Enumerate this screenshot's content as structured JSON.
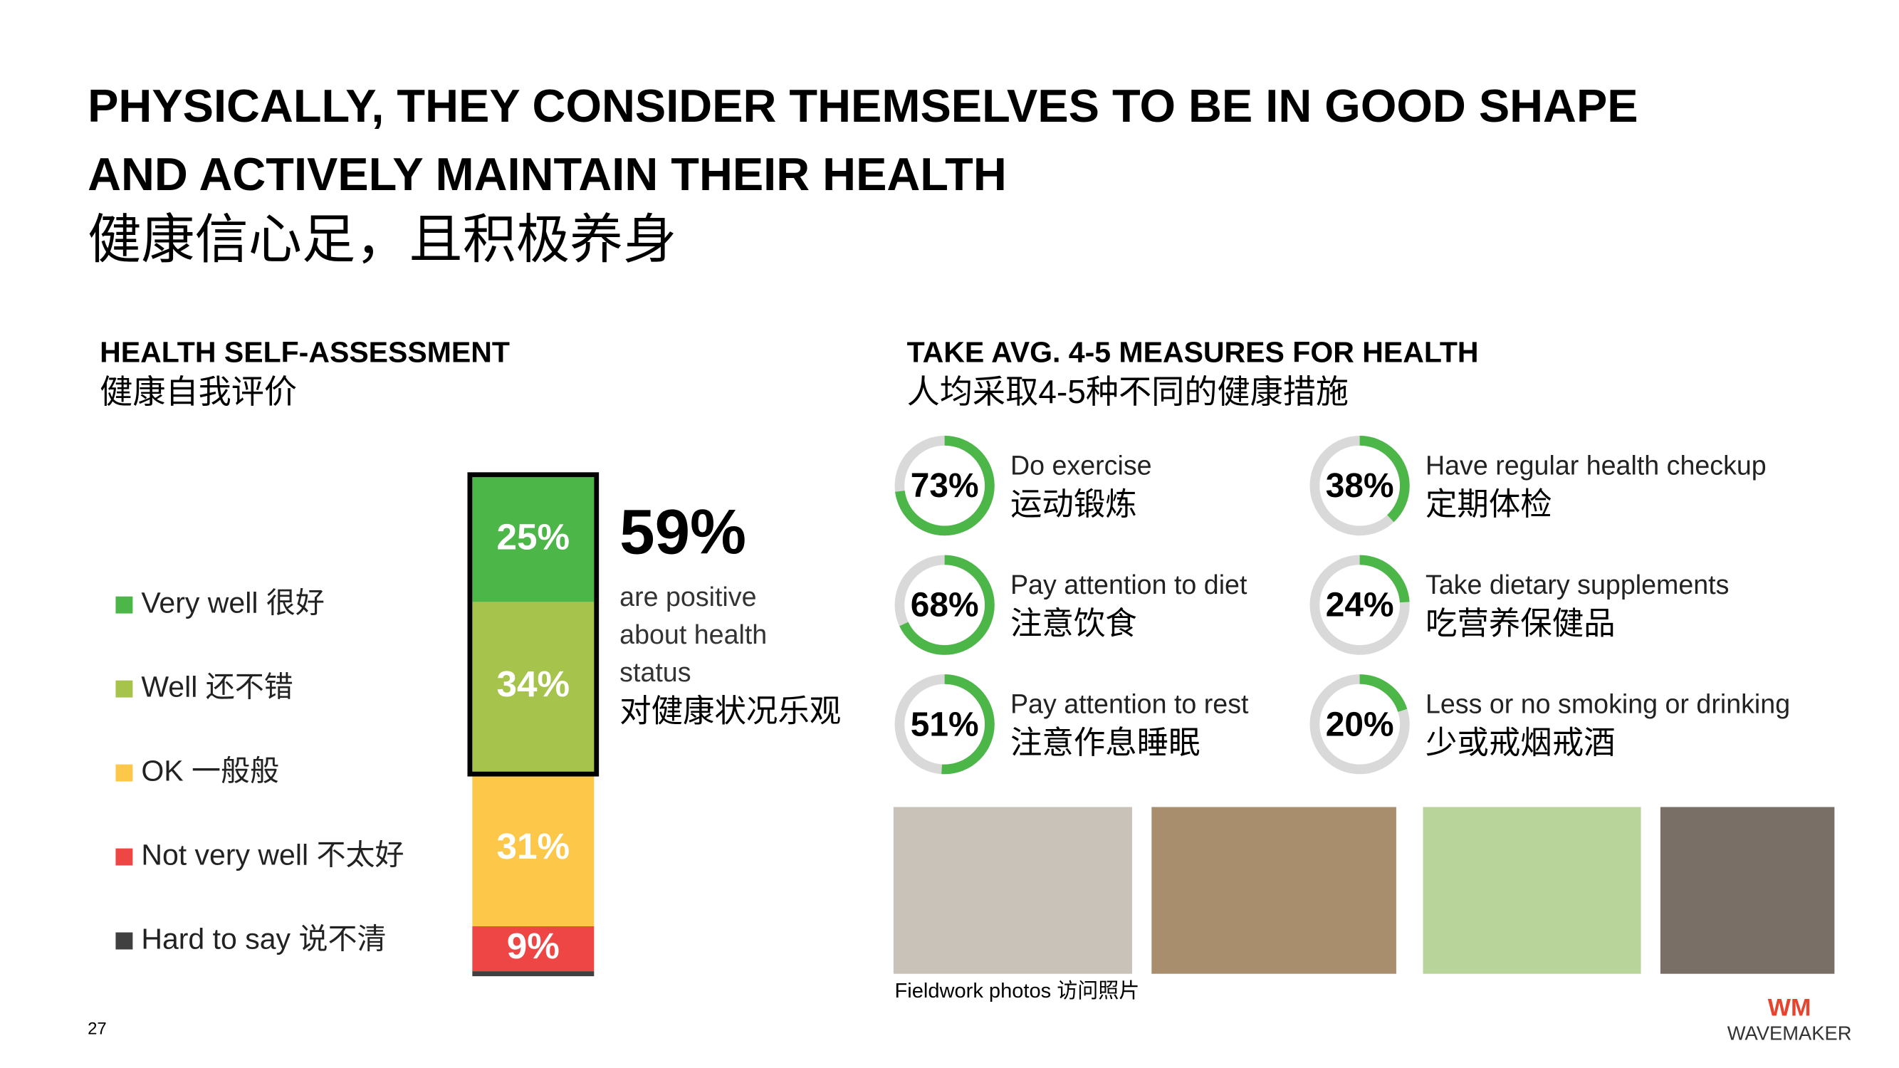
{
  "title": [
    "PHYSICALLY, THEY CONSIDER THEMSELVES TO BE IN GOOD SHAPE",
    "AND ACTIVELY MAINTAIN THEIR HEALTH"
  ],
  "title_zh": "健康信心足，且积极养身",
  "chart_data": [
    {
      "type": "stacked_bar",
      "title": "HEALTH SELF-ASSESSMENT",
      "subtitle": "健康自我评价",
      "series": [
        {
          "name": "Very well 很好",
          "color": "#4cb748",
          "values": [
            25
          ],
          "value_labels": [
            "25%"
          ]
        },
        {
          "name": "Well 还不错",
          "color": "#a6c44c",
          "values": [
            34
          ],
          "value_labels": [
            "34%"
          ]
        },
        {
          "name": "OK 一般般",
          "color": "#fdc84a",
          "values": [
            31
          ],
          "value_labels": [
            "31%"
          ]
        },
        {
          "name": "Not very well 不太好",
          "color": "#ee4545",
          "values": [
            9
          ],
          "value_labels": [
            "9%"
          ]
        },
        {
          "name": "Hard to say 说不清",
          "color": "#404040",
          "values": [
            1
          ],
          "value_labels": [
            null
          ]
        }
      ],
      "annotation": {
        "value": "59%",
        "lines": [
          "are positive",
          "about health",
          "status"
        ],
        "text_zh": "对健康状况乐观"
      }
    },
    {
      "type": "donut",
      "title": "TAKE AVG. 4-5 MEASURES FOR HEALTH",
      "subtitle": "人均采取4-5种不同的健康措施",
      "categories": [
        "Do exercise",
        "Pay attention to diet",
        "Pay attention to rest",
        "Have regular health checkup",
        "Take dietary supplements",
        "Less or no smoking or drinking"
      ],
      "categories_zh": [
        "运动锻炼",
        "注意饮食",
        "注意作息睡眠",
        "定期体检",
        "吃营养保健品",
        "少或戒烟戒酒"
      ],
      "values": [
        73,
        68,
        51,
        38,
        24,
        20
      ],
      "value_labels": [
        "73%",
        "68%",
        "51%",
        "38%",
        "24%",
        "20%"
      ],
      "color": "#4cb748",
      "track_color": "#d9d9d9"
    }
  ],
  "photos_caption": "Fieldwork photos 访问照片",
  "page_number": "27",
  "logo_mark": "WM",
  "logo": "WAVEMAKER"
}
